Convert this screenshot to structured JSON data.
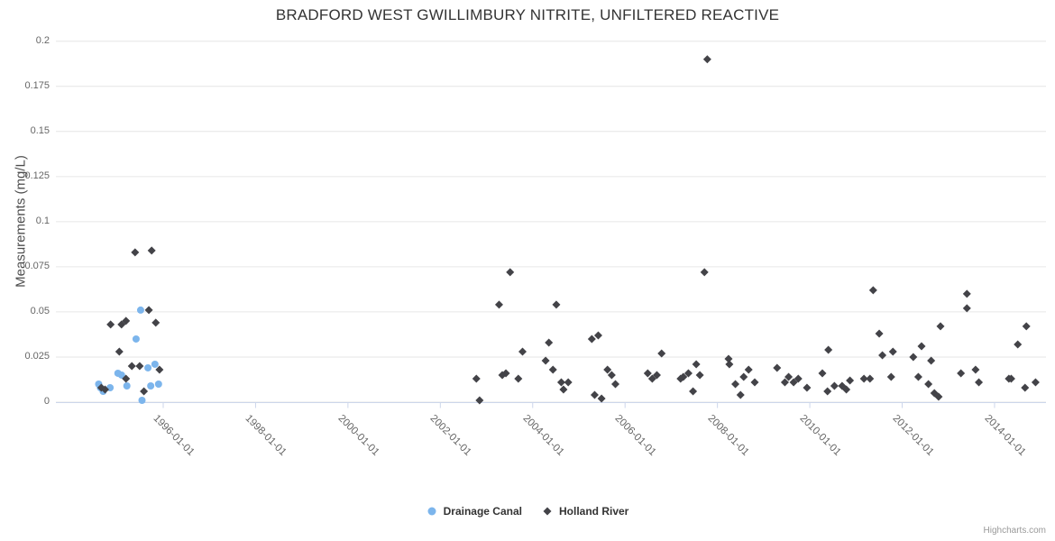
{
  "title": "BRADFORD WEST GWILLIMBURY NITRITE, UNFILTERED REACTIVE",
  "y_axis_title": "Measurements (mg/L)",
  "credits_label": "Highcharts.com",
  "colors": {
    "drainage_canal": "#7cb5ec",
    "holland_river": "#434348",
    "grid": "#e6e6e6",
    "axis_line": "#ccd6eb",
    "title_text": "#333333",
    "tick_text": "#666666",
    "legend_text": "#333333",
    "credits_text": "#999999"
  },
  "chart_data": {
    "type": "scatter",
    "title": "BRADFORD WEST GWILLIMBURY NITRITE, UNFILTERED REACTIVE",
    "xlabel": "",
    "ylabel": "Measurements (mg/L)",
    "ylim": [
      0,
      0.2
    ],
    "ytick_values": [
      0,
      0.025,
      0.05,
      0.075,
      0.1,
      0.125,
      0.15,
      0.175,
      0.2
    ],
    "ytick_labels": [
      "0",
      "0.025",
      "0.05",
      "0.075",
      "0.1",
      "0.125",
      "0.15",
      "0.175",
      "0.2"
    ],
    "xtick_labels": [
      "1996-01-01",
      "1998-01-01",
      "2000-01-01",
      "2002-01-01",
      "2004-01-01",
      "2006-01-01",
      "2008-01-01",
      "2010-01-01",
      "2012-01-01",
      "2014-01-01"
    ],
    "grid": "horizontal-only",
    "legend_position": "bottom-center",
    "series": [
      {
        "name": "Drainage Canal",
        "marker": "circle",
        "color": "#7cb5ec",
        "points": [
          [
            "1994-08-08",
            0.01
          ],
          [
            "1994-08-22",
            0.008
          ],
          [
            "1994-09-13",
            0.006
          ],
          [
            "1994-11-07",
            0.008
          ],
          [
            "1995-01-08",
            0.016
          ],
          [
            "1995-02-06",
            0.015
          ],
          [
            "1995-03-18",
            0.009
          ],
          [
            "1995-05-30",
            0.035
          ],
          [
            "1995-07-05",
            0.051
          ],
          [
            "1995-07-16",
            0.001
          ],
          [
            "1995-09-02",
            0.019
          ],
          [
            "1995-09-24",
            0.009
          ],
          [
            "1995-10-27",
            0.021
          ],
          [
            "1995-11-25",
            0.01
          ]
        ]
      },
      {
        "name": "Holland River",
        "marker": "diamond",
        "color": "#434348",
        "points": [
          [
            "1994-08-29",
            0.008
          ],
          [
            "1994-09-28",
            0.007
          ],
          [
            "1994-11-11",
            0.043
          ],
          [
            "1995-01-19",
            0.028
          ],
          [
            "1995-02-06",
            0.043
          ],
          [
            "1995-03-11",
            0.045
          ],
          [
            "1995-03-11",
            0.013
          ],
          [
            "1995-04-27",
            0.02
          ],
          [
            "1995-05-22",
            0.083
          ],
          [
            "1995-06-28",
            0.02
          ],
          [
            "1995-07-31",
            0.006
          ],
          [
            "1995-09-09",
            0.051
          ],
          [
            "1995-10-01",
            0.084
          ],
          [
            "1995-11-03",
            0.044
          ],
          [
            "1995-12-02",
            0.018
          ],
          [
            "2002-10-12",
            0.013
          ],
          [
            "2002-11-07",
            0.001
          ],
          [
            "2003-04-09",
            0.054
          ],
          [
            "2003-05-04",
            0.015
          ],
          [
            "2003-06-02",
            0.016
          ],
          [
            "2003-07-05",
            0.072
          ],
          [
            "2003-09-09",
            0.013
          ],
          [
            "2003-10-12",
            0.028
          ],
          [
            "2004-04-12",
            0.023
          ],
          [
            "2004-05-07",
            0.033
          ],
          [
            "2004-06-09",
            0.018
          ],
          [
            "2004-07-05",
            0.054
          ],
          [
            "2004-08-14",
            0.011
          ],
          [
            "2004-09-01",
            0.007
          ],
          [
            "2004-10-08",
            0.011
          ],
          [
            "2005-04-12",
            0.035
          ],
          [
            "2005-05-04",
            0.004
          ],
          [
            "2005-06-02",
            0.037
          ],
          [
            "2005-06-28",
            0.002
          ],
          [
            "2005-08-14",
            0.018
          ],
          [
            "2005-09-17",
            0.015
          ],
          [
            "2005-10-16",
            0.01
          ],
          [
            "2006-06-28",
            0.016
          ],
          [
            "2006-08-03",
            0.013
          ],
          [
            "2006-09-09",
            0.015
          ],
          [
            "2006-10-16",
            0.027
          ],
          [
            "2007-03-14",
            0.013
          ],
          [
            "2007-04-05",
            0.014
          ],
          [
            "2007-05-15",
            0.016
          ],
          [
            "2007-06-21",
            0.006
          ],
          [
            "2007-07-16",
            0.021
          ],
          [
            "2007-08-14",
            0.015
          ],
          [
            "2007-09-20",
            0.072
          ],
          [
            "2007-10-12",
            0.19
          ],
          [
            "2008-03-28",
            0.024
          ],
          [
            "2008-04-04",
            0.021
          ],
          [
            "2008-05-21",
            0.01
          ],
          [
            "2008-07-01",
            0.004
          ],
          [
            "2008-07-26",
            0.014
          ],
          [
            "2008-09-04",
            0.018
          ],
          [
            "2008-10-22",
            0.011
          ],
          [
            "2009-04-16",
            0.019
          ],
          [
            "2009-06-17",
            0.011
          ],
          [
            "2009-07-16",
            0.014
          ],
          [
            "2009-08-25",
            0.011
          ],
          [
            "2009-10-01",
            0.013
          ],
          [
            "2009-12-09",
            0.008
          ],
          [
            "2010-04-09",
            0.016
          ],
          [
            "2010-05-19",
            0.006
          ],
          [
            "2010-05-26",
            0.029
          ],
          [
            "2010-07-13",
            0.009
          ],
          [
            "2010-09-13",
            0.009
          ],
          [
            "2010-10-16",
            0.007
          ],
          [
            "2010-11-14",
            0.012
          ],
          [
            "2011-03-03",
            0.013
          ],
          [
            "2011-04-20",
            0.013
          ],
          [
            "2011-05-15",
            0.062
          ],
          [
            "2011-07-02",
            0.038
          ],
          [
            "2011-07-27",
            0.026
          ],
          [
            "2011-10-05",
            0.014
          ],
          [
            "2011-10-19",
            0.028
          ],
          [
            "2012-03-28",
            0.025
          ],
          [
            "2012-05-07",
            0.014
          ],
          [
            "2012-06-02",
            0.031
          ],
          [
            "2012-07-26",
            0.01
          ],
          [
            "2012-08-17",
            0.023
          ],
          [
            "2012-09-12",
            0.005
          ],
          [
            "2012-10-15",
            0.003
          ],
          [
            "2012-10-30",
            0.042
          ],
          [
            "2013-04-09",
            0.016
          ],
          [
            "2013-05-26",
            0.06
          ],
          [
            "2013-05-26",
            0.052
          ],
          [
            "2013-08-03",
            0.018
          ],
          [
            "2013-08-29",
            0.011
          ],
          [
            "2014-04-23",
            0.013
          ],
          [
            "2014-05-11",
            0.013
          ],
          [
            "2014-07-02",
            0.032
          ],
          [
            "2014-08-29",
            0.008
          ],
          [
            "2014-09-09",
            0.042
          ],
          [
            "2014-11-21",
            0.011
          ]
        ]
      }
    ]
  }
}
